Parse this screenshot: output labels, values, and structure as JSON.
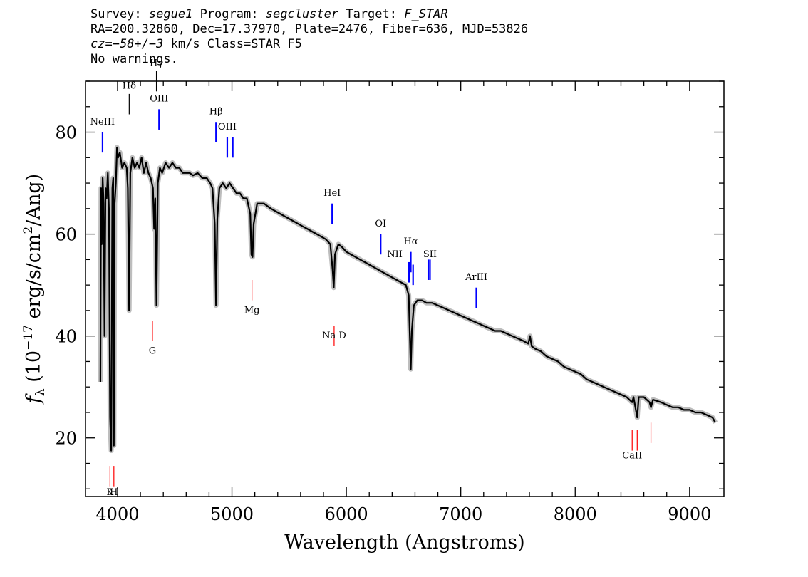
{
  "header": {
    "survey_label": "Survey:",
    "survey": "segue1",
    "program_label": "Program:",
    "program": "segcluster",
    "target_label": "Target:",
    "target": "F_STAR",
    "coords": "RA=200.32860, Dec=17.37970, Plate=2476, Fiber=636, MJD=53826",
    "cz_prefix": "cz",
    "cz_value": "=−58+/−3",
    "cz_suffix": " km/s Class=STAR F5",
    "warnings": "No warnings."
  },
  "chart_data": {
    "type": "line",
    "xlabel": "Wavelength (Angstroms)",
    "ylabel_main": "f",
    "ylabel_sub": "λ",
    "ylabel_rest": " (10",
    "ylabel_exp": "−17",
    "ylabel_tail": " erg/s/cm",
    "ylabel_exp2": "2",
    "ylabel_end": "/Ang)",
    "xlim": [
      3720,
      9300
    ],
    "ylim": [
      8.5,
      90
    ],
    "x_ticks": [
      4000,
      5000,
      6000,
      7000,
      8000,
      9000
    ],
    "x_tick_labels": [
      "4000",
      "5000",
      "6000",
      "7000",
      "8000",
      "9000"
    ],
    "y_ticks": [
      20,
      40,
      60,
      80
    ],
    "y_tick_labels": [
      "20",
      "40",
      "60",
      "80"
    ],
    "grid": false,
    "series": [
      {
        "color": "#000000",
        "points": [
          [
            3850,
            31
          ],
          [
            3856,
            69
          ],
          [
            3862,
            58
          ],
          [
            3870,
            71
          ],
          [
            3878,
            66
          ],
          [
            3886,
            40
          ],
          [
            3895,
            69
          ],
          [
            3905,
            67
          ],
          [
            3915,
            72
          ],
          [
            3925,
            65
          ],
          [
            3935,
            24
          ],
          [
            3945,
            17.5
          ],
          [
            3955,
            69
          ],
          [
            3962,
            71
          ],
          [
            3968,
            18.5
          ],
          [
            3975,
            66
          ],
          [
            3985,
            70
          ],
          [
            3995,
            77
          ],
          [
            4005,
            75
          ],
          [
            4020,
            76
          ],
          [
            4040,
            73
          ],
          [
            4060,
            74
          ],
          [
            4080,
            73
          ],
          [
            4090,
            69
          ],
          [
            4101,
            45
          ],
          [
            4112,
            72
          ],
          [
            4130,
            75
          ],
          [
            4150,
            73
          ],
          [
            4170,
            74
          ],
          [
            4190,
            73
          ],
          [
            4210,
            75
          ],
          [
            4230,
            72
          ],
          [
            4250,
            74
          ],
          [
            4270,
            72
          ],
          [
            4290,
            71
          ],
          [
            4310,
            69
          ],
          [
            4320,
            61
          ],
          [
            4330,
            67
          ],
          [
            4340,
            46
          ],
          [
            4352,
            70
          ],
          [
            4370,
            73
          ],
          [
            4390,
            72
          ],
          [
            4420,
            74
          ],
          [
            4450,
            73
          ],
          [
            4480,
            74
          ],
          [
            4510,
            73
          ],
          [
            4540,
            73
          ],
          [
            4570,
            72
          ],
          [
            4600,
            72
          ],
          [
            4630,
            72
          ],
          [
            4660,
            71.5
          ],
          [
            4700,
            72
          ],
          [
            4740,
            71
          ],
          [
            4780,
            71
          ],
          [
            4810,
            70
          ],
          [
            4830,
            69
          ],
          [
            4850,
            62
          ],
          [
            4861,
            46
          ],
          [
            4872,
            63
          ],
          [
            4890,
            69
          ],
          [
            4920,
            70
          ],
          [
            4950,
            69
          ],
          [
            4980,
            70
          ],
          [
            5010,
            69
          ],
          [
            5040,
            68
          ],
          [
            5070,
            68
          ],
          [
            5100,
            67
          ],
          [
            5130,
            67
          ],
          [
            5160,
            64
          ],
          [
            5170,
            56
          ],
          [
            5180,
            55.5
          ],
          [
            5190,
            62
          ],
          [
            5220,
            66
          ],
          [
            5250,
            66
          ],
          [
            5280,
            66
          ],
          [
            5310,
            65.5
          ],
          [
            5340,
            65
          ],
          [
            5380,
            64.5
          ],
          [
            5420,
            64
          ],
          [
            5460,
            63.5
          ],
          [
            5500,
            63
          ],
          [
            5540,
            62.5
          ],
          [
            5580,
            62
          ],
          [
            5620,
            61.5
          ],
          [
            5660,
            61
          ],
          [
            5700,
            60.5
          ],
          [
            5740,
            60
          ],
          [
            5780,
            59.5
          ],
          [
            5820,
            59
          ],
          [
            5860,
            58
          ],
          [
            5880,
            53
          ],
          [
            5890,
            49.5
          ],
          [
            5900,
            56
          ],
          [
            5930,
            58
          ],
          [
            5960,
            57.5
          ],
          [
            6000,
            56.5
          ],
          [
            6040,
            56
          ],
          [
            6080,
            55.5
          ],
          [
            6120,
            55
          ],
          [
            6160,
            54.5
          ],
          [
            6200,
            54
          ],
          [
            6240,
            53.5
          ],
          [
            6280,
            53
          ],
          [
            6320,
            52.5
          ],
          [
            6360,
            52
          ],
          [
            6400,
            51.5
          ],
          [
            6440,
            51
          ],
          [
            6480,
            50.5
          ],
          [
            6520,
            50
          ],
          [
            6545,
            48
          ],
          [
            6555,
            40
          ],
          [
            6563,
            33.5
          ],
          [
            6572,
            41
          ],
          [
            6590,
            46
          ],
          [
            6620,
            47
          ],
          [
            6660,
            47
          ],
          [
            6700,
            46.5
          ],
          [
            6750,
            46.5
          ],
          [
            6800,
            46
          ],
          [
            6850,
            45.5
          ],
          [
            6900,
            45
          ],
          [
            6950,
            44.5
          ],
          [
            7000,
            44
          ],
          [
            7050,
            43.5
          ],
          [
            7100,
            43
          ],
          [
            7150,
            42.5
          ],
          [
            7200,
            42
          ],
          [
            7250,
            41.5
          ],
          [
            7300,
            41
          ],
          [
            7350,
            41
          ],
          [
            7400,
            40.5
          ],
          [
            7450,
            40
          ],
          [
            7500,
            39.5
          ],
          [
            7550,
            39
          ],
          [
            7590,
            38.5
          ],
          [
            7605,
            40
          ],
          [
            7620,
            38
          ],
          [
            7650,
            37.5
          ],
          [
            7700,
            37
          ],
          [
            7750,
            36
          ],
          [
            7800,
            35.5
          ],
          [
            7850,
            35
          ],
          [
            7900,
            34
          ],
          [
            7950,
            33.5
          ],
          [
            8000,
            33
          ],
          [
            8050,
            32.5
          ],
          [
            8100,
            31.5
          ],
          [
            8150,
            31
          ],
          [
            8200,
            30.5
          ],
          [
            8250,
            30
          ],
          [
            8300,
            29.5
          ],
          [
            8350,
            29
          ],
          [
            8400,
            28.5
          ],
          [
            8450,
            28
          ],
          [
            8498,
            27
          ],
          [
            8510,
            28
          ],
          [
            8542,
            24
          ],
          [
            8555,
            28
          ],
          [
            8600,
            28
          ],
          [
            8650,
            27
          ],
          [
            8662,
            26
          ],
          [
            8680,
            27.5
          ],
          [
            8750,
            27
          ],
          [
            8800,
            26.5
          ],
          [
            8850,
            26
          ],
          [
            8900,
            26
          ],
          [
            8950,
            25.5
          ],
          [
            9000,
            25.5
          ],
          [
            9050,
            25
          ],
          [
            9100,
            25
          ],
          [
            9150,
            24.5
          ],
          [
            9200,
            24
          ],
          [
            9225,
            23
          ]
        ]
      }
    ],
    "emission_lines": [
      {
        "label": "NeIII",
        "x": 3869,
        "y0": 76,
        "y1": 80,
        "label_y": 81.5
      },
      {
        "label": "OIII",
        "x": 4363,
        "y0": 80.5,
        "y1": 84.5,
        "label_y": 86
      },
      {
        "label": "Hβ",
        "x": 4861,
        "y0": 78,
        "y1": 82,
        "label_y": 83.5
      },
      {
        "label": "OIII",
        "x": 4959,
        "y0": 75,
        "y1": 79,
        "label_y": 80.5
      },
      {
        "label": "",
        "x": 5007,
        "y0": 75,
        "y1": 79
      },
      {
        "label": "HeI",
        "x": 5876,
        "y0": 62,
        "y1": 66,
        "label_y": 67.5
      },
      {
        "label": "OI",
        "x": 6300,
        "y0": 56,
        "y1": 60,
        "label_y": 61.5
      },
      {
        "label": "NII",
        "x": 6548,
        "y0": 50.5,
        "y1": 54.5,
        "label_y": 55.5,
        "label_dx": -20
      },
      {
        "label": "Hα",
        "x": 6563,
        "y0": 52.5,
        "y1": 56.5,
        "label_y": 58
      },
      {
        "label": "",
        "x": 6583,
        "y0": 50,
        "y1": 54
      },
      {
        "label": "",
        "x": 6716,
        "y0": 51,
        "y1": 55
      },
      {
        "label": "SII",
        "x": 6731,
        "y0": 51,
        "y1": 55,
        "label_y": 55.5
      },
      {
        "label": "ArIII",
        "x": 7136,
        "y0": 45.5,
        "y1": 49.5,
        "label_y": 51
      }
    ],
    "absorption_lines": [
      {
        "label": "Hδ",
        "x": 4102,
        "y0": 83.5,
        "y1": 87.5,
        "label_y": 88.5
      },
      {
        "label": "Hγ",
        "x": 4340,
        "y0": 88,
        "y1": 92,
        "label_y": 93
      },
      {
        "label": "G",
        "x": 4305,
        "y0": 39,
        "y1": 43,
        "label_y": 36.5
      },
      {
        "label": "Mg",
        "x": 5175,
        "y0": 47,
        "y1": 51,
        "label_y": 44.5
      },
      {
        "label": "Na D",
        "x": 5893,
        "y0": 38,
        "y1": 42,
        "label_y": 39.5
      },
      {
        "label": "K",
        "x": 3934,
        "y0": 10.5,
        "y1": 14.5,
        "label_y": 8.8
      },
      {
        "label": "H",
        "x": 3968,
        "y0": 10.5,
        "y1": 14.5,
        "label_y": 8.8
      },
      {
        "label": "CaII",
        "x": 8498,
        "y0": 17.5,
        "y1": 21.5,
        "label_y": 16
      },
      {
        "label": "",
        "x": 8542,
        "y0": 17.5,
        "y1": 21.5
      },
      {
        "label": "",
        "x": 8662,
        "y0": 19,
        "y1": 23
      }
    ],
    "colors": {
      "spectrum": "#000000",
      "error_band": "#bdbdbd",
      "emission": "#0000ff",
      "absorption": "#ff0000"
    }
  }
}
